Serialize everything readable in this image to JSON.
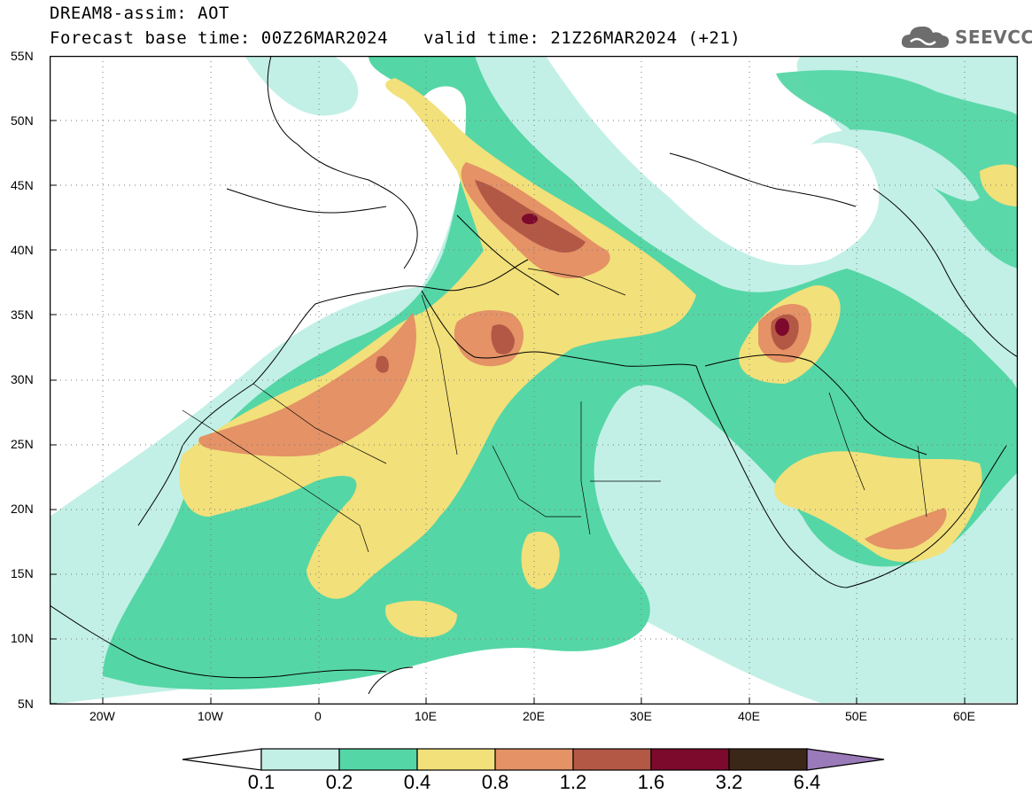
{
  "title": {
    "line1": "DREAM8-assim: AOT",
    "base": "Forecast base time: 00Z26MAR2024",
    "valid": "valid time: 21Z26MAR2024 (+21)"
  },
  "logo": {
    "icon": "cloud-icon",
    "text": "SEEVCCC"
  },
  "axes": {
    "lat_labels": [
      "55N",
      "50N",
      "45N",
      "40N",
      "35N",
      "30N",
      "25N",
      "20N",
      "15N",
      "10N",
      "5N"
    ],
    "lon_labels": [
      "20W",
      "10W",
      "0",
      "10E",
      "20E",
      "30E",
      "40E",
      "50E",
      "60E"
    ],
    "lat_range": [
      5,
      55
    ],
    "lon_range": [
      -25,
      65
    ],
    "grid": "dotted"
  },
  "colorbar": {
    "labels": [
      "0.1",
      "0.2",
      "0.4",
      "0.8",
      "1.2",
      "1.6",
      "3.2",
      "6.4"
    ],
    "colors": [
      "#c2f0e6",
      "#55d6a6",
      "#f2e07a",
      "#e49266",
      "#b45846",
      "#7c0a2c",
      "#3b2718",
      "#9a7ab8"
    ]
  },
  "colors": {
    "aot_0_1": "#c2f0e6",
    "aot_0_2": "#55d6a6",
    "aot_0_4": "#f2e07a",
    "aot_0_8": "#e49266",
    "aot_1_2": "#b45846",
    "aot_1_6": "#7c0a2c"
  }
}
